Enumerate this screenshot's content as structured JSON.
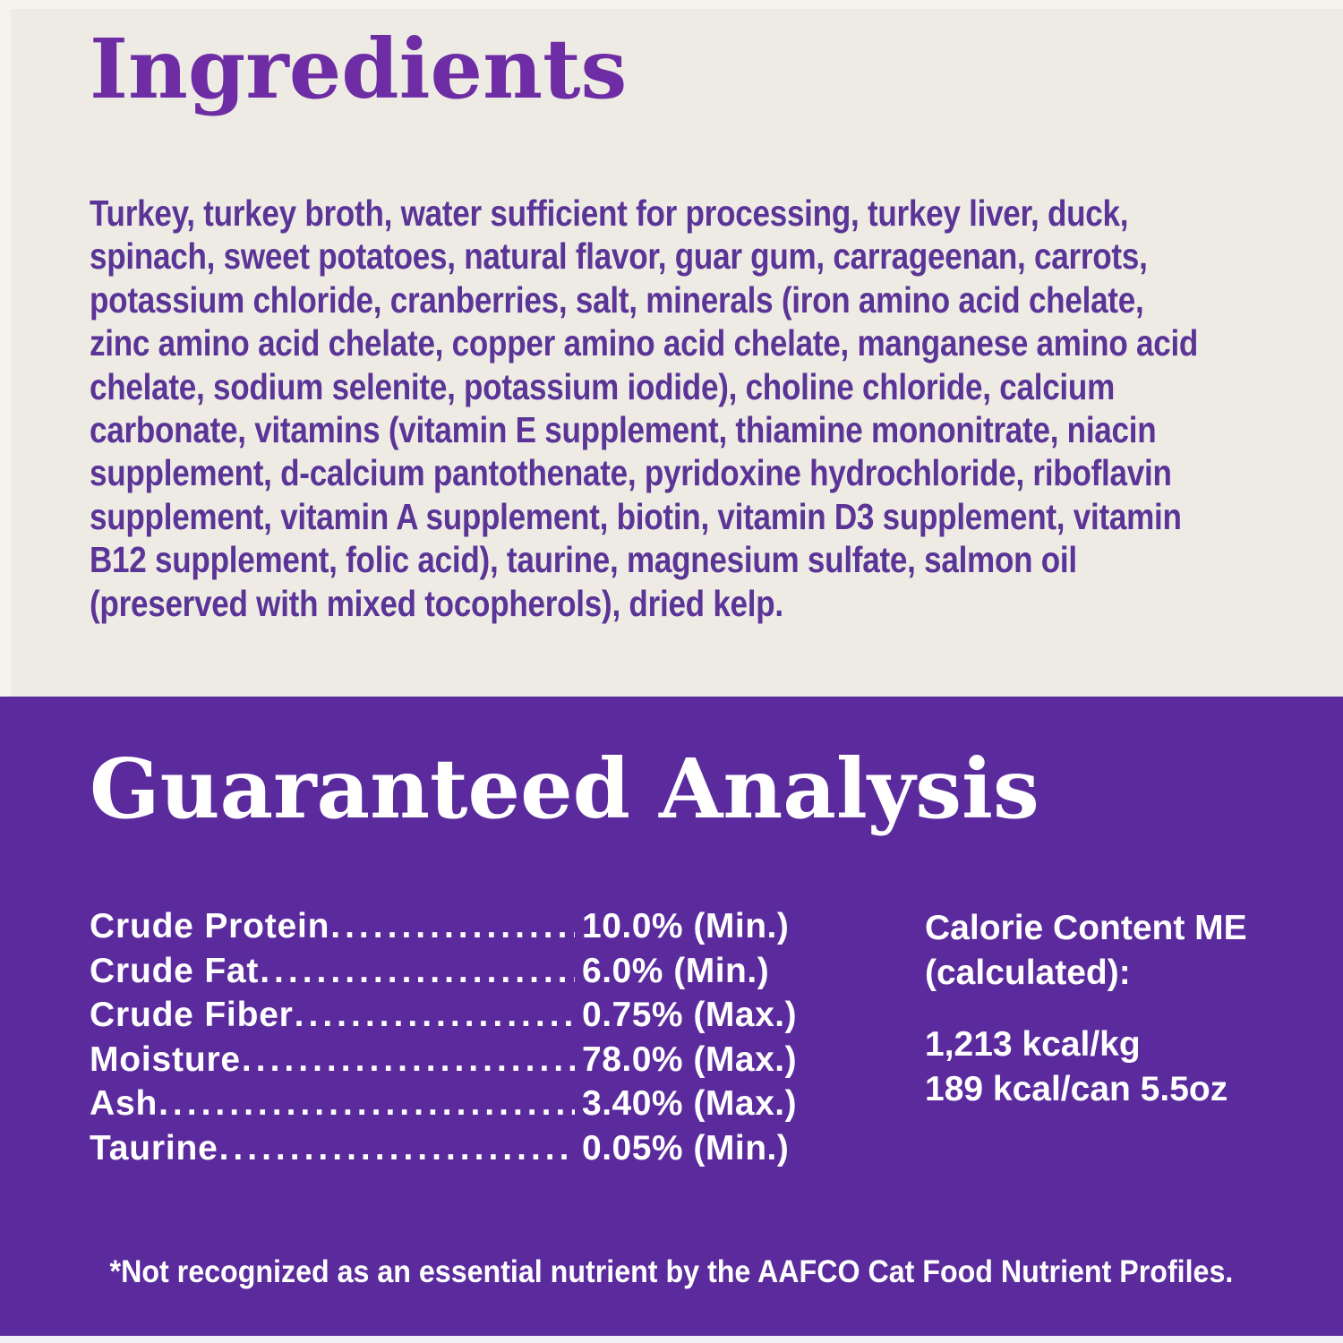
{
  "label": {
    "colors": {
      "top_background": "#edebe3",
      "bottom_background": "#5b2b9d",
      "heading_purple": "#6e2ca5",
      "body_purple": "#5b3497",
      "text_on_purple": "#ffffff"
    },
    "ingredients": {
      "title": "Ingredients",
      "lines": [
        "Turkey, turkey broth, water sufficient for processing, turkey liver, duck,",
        "spinach, sweet potatoes, natural flavor, guar gum, carrageenan, carrots,",
        "potassium chloride, cranberries, salt, minerals (iron amino acid chelate,",
        "zinc amino acid chelate, copper amino acid chelate, manganese amino acid",
        "chelate, sodium selenite, potassium iodide), choline chloride, calcium",
        "carbonate, vitamins (vitamin E supplement, thiamine mononitrate, niacin",
        "supplement, d-calcium pantothenate, pyridoxine hydrochloride, riboflavin",
        "supplement, vitamin A supplement, biotin, vitamin D3 supplement, vitamin",
        "B12 supplement, folic acid), taurine, magnesium sulfate, salmon oil",
        "(preserved with mixed tocopherols), dried kelp."
      ]
    },
    "analysis": {
      "title": "Guaranteed Analysis",
      "rows": [
        {
          "label": "Crude Protein",
          "value": "10.0% (Min.)"
        },
        {
          "label": "Crude Fat",
          "value": "6.0% (Min.)"
        },
        {
          "label": "Crude Fiber",
          "value": "0.75% (Max.)"
        },
        {
          "label": "Moisture",
          "value": "78.0% (Max.)"
        },
        {
          "label": "Ash",
          "value": "3.40% (Max.)"
        },
        {
          "label": "Taurine",
          "value": "0.05% (Min.)"
        }
      ],
      "calorie": {
        "heading_line1": "Calorie Content ME",
        "heading_line2": "(calculated):",
        "value_line1": "1,213 kcal/kg",
        "value_line2": "189 kcal/can 5.5oz"
      },
      "footnote": "*Not recognized as an essential nutrient by the AAFCO Cat Food Nutrient Profiles."
    }
  }
}
